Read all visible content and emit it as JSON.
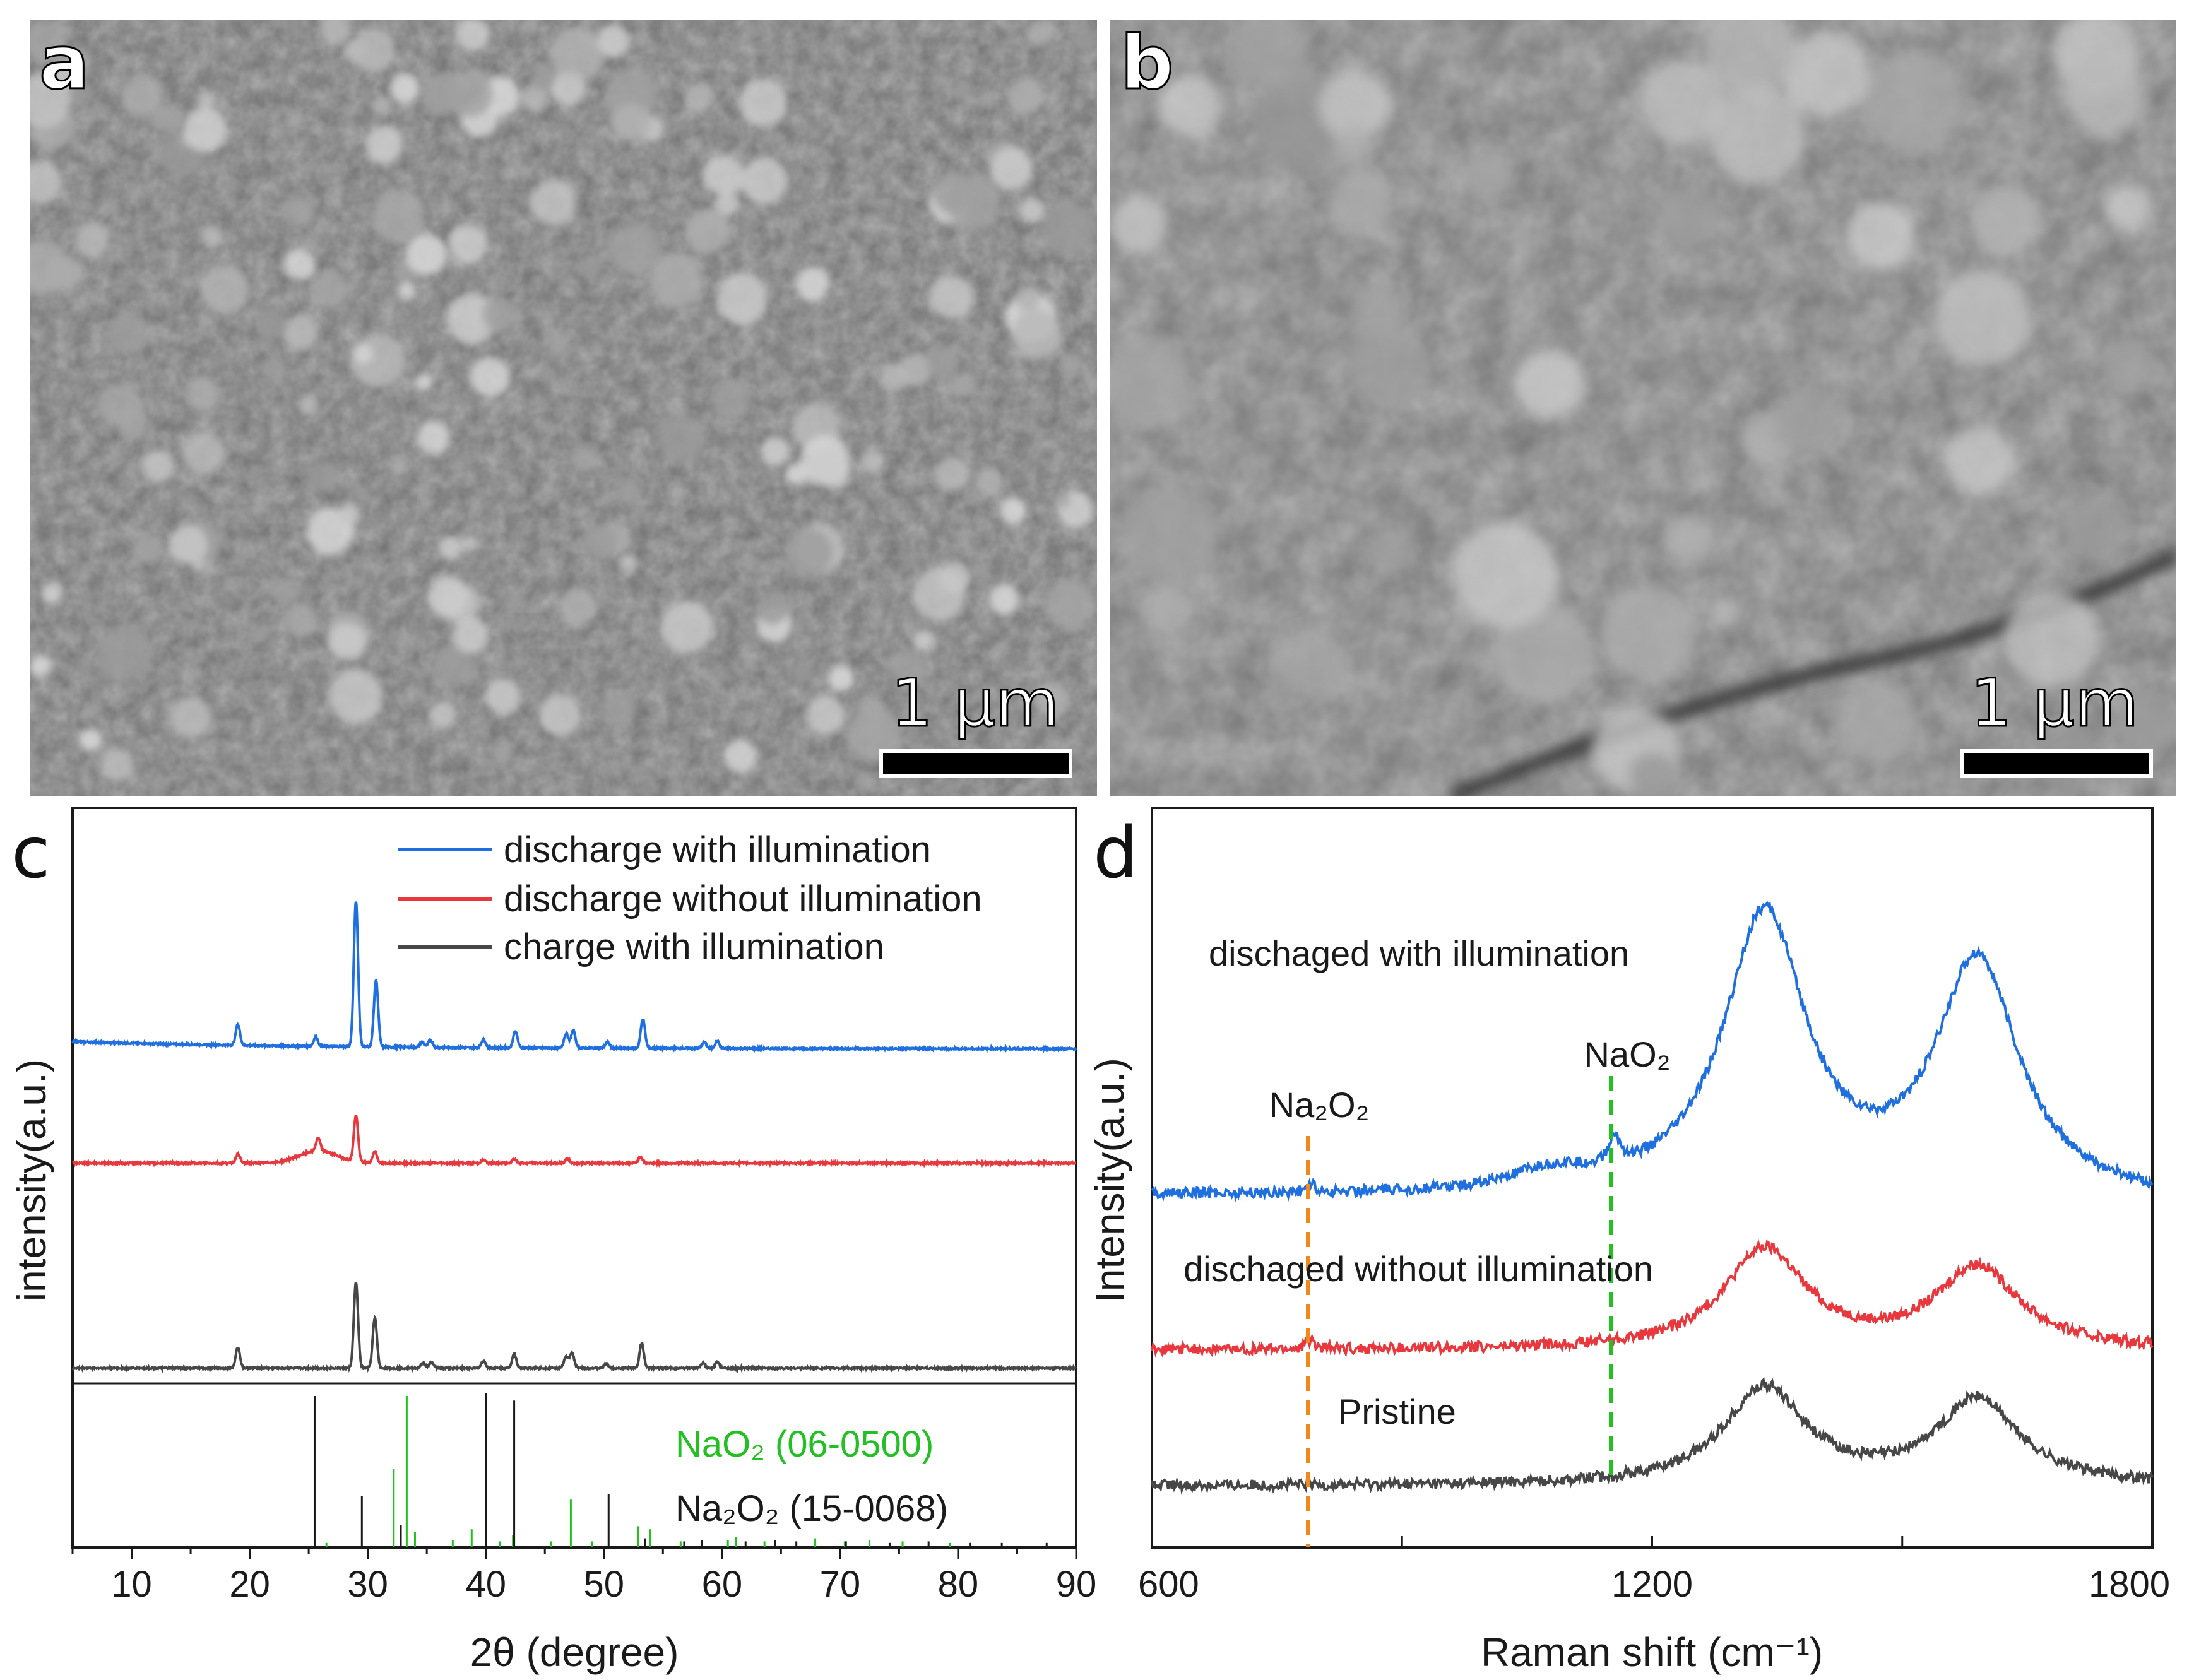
{
  "panels": {
    "a": {
      "letter": "a",
      "scalebar": "1 µm"
    },
    "b": {
      "letter": "b",
      "scalebar": "1 µm"
    },
    "c": {
      "letter": "c"
    },
    "d": {
      "letter": "d"
    }
  },
  "colors": {
    "blue": "#1f6fe0",
    "red": "#e8383d",
    "dark": "#474747",
    "green": "#22c022",
    "orange": "#f0891a"
  },
  "chart_data": [
    {
      "type": "line",
      "panel": "c",
      "xlabel": "2θ (degree)",
      "ylabel": "intensity(a.u.)",
      "xlim": [
        5,
        90
      ],
      "xticks": [
        10,
        20,
        30,
        40,
        50,
        60,
        70,
        80,
        90
      ],
      "series": [
        {
          "name": "discharge with illumination",
          "color": "#1f6fe0",
          "baseline": 0.0,
          "peaks": [
            [
              19.0,
              1.0
            ],
            [
              25.6,
              0.45
            ],
            [
              29.0,
              7.0
            ],
            [
              30.7,
              3.2
            ],
            [
              34.6,
              0.25
            ],
            [
              35.3,
              0.35
            ],
            [
              39.8,
              0.4
            ],
            [
              42.5,
              0.8
            ],
            [
              46.8,
              0.7
            ],
            [
              47.4,
              0.85
            ],
            [
              50.3,
              0.3
            ],
            [
              53.3,
              1.4
            ],
            [
              58.5,
              0.3
            ],
            [
              59.6,
              0.35
            ]
          ]
        },
        {
          "name": "discharge without illumination",
          "color": "#e8383d",
          "baseline": 0.0,
          "peaks": [
            [
              19.0,
              0.45
            ],
            [
              25.8,
              0.6
            ],
            [
              29.0,
              2.2
            ],
            [
              30.6,
              0.55
            ],
            [
              39.8,
              0.15
            ],
            [
              42.4,
              0.2
            ],
            [
              46.9,
              0.2
            ],
            [
              53.1,
              0.3
            ]
          ]
        },
        {
          "name": "charge with illumination",
          "color": "#474747",
          "baseline": 0.0,
          "peaks": [
            [
              19.0,
              1.0
            ],
            [
              29.0,
              4.1
            ],
            [
              30.6,
              2.4
            ],
            [
              34.7,
              0.25
            ],
            [
              35.4,
              0.3
            ],
            [
              39.8,
              0.35
            ],
            [
              42.4,
              0.7
            ],
            [
              46.8,
              0.55
            ],
            [
              47.3,
              0.75
            ],
            [
              50.2,
              0.2
            ],
            [
              53.2,
              1.2
            ],
            [
              58.4,
              0.25
            ],
            [
              59.6,
              0.3
            ]
          ]
        }
      ],
      "references": [
        {
          "name": "NaO2 (06-0500)",
          "color": "#22c022",
          "lines": [
            [
              26.5,
              0.03
            ],
            [
              32.2,
              0.52
            ],
            [
              33.3,
              1.0
            ],
            [
              34.0,
              0.1
            ],
            [
              37.2,
              0.05
            ],
            [
              38.8,
              0.12
            ],
            [
              41.2,
              0.04
            ],
            [
              42.3,
              0.08
            ],
            [
              45.5,
              0.04
            ],
            [
              47.2,
              0.32
            ],
            [
              49.0,
              0.04
            ],
            [
              52.9,
              0.14
            ],
            [
              53.9,
              0.12
            ],
            [
              56.5,
              0.04
            ],
            [
              60.5,
              0.05
            ],
            [
              61.2,
              0.07
            ],
            [
              63.6,
              0.04
            ],
            [
              67.9,
              0.06
            ],
            [
              70.4,
              0.04
            ],
            [
              72.5,
              0.05
            ],
            [
              75.3,
              0.04
            ],
            [
              79.3,
              0.03
            ]
          ]
        },
        {
          "name": "Na2O2 (15-0068)",
          "color": "#1a1a1a",
          "lines": [
            [
              25.5,
              1.0
            ],
            [
              29.5,
              0.34
            ],
            [
              32.8,
              0.15
            ],
            [
              40.0,
              1.02
            ],
            [
              42.4,
              0.97
            ],
            [
              50.4,
              0.35
            ],
            [
              53.5,
              0.06
            ],
            [
              56.8,
              0.04
            ],
            [
              58.3,
              0.05
            ],
            [
              62.0,
              0.04
            ],
            [
              64.5,
              0.05
            ],
            [
              66.3,
              0.04
            ],
            [
              70.5,
              0.04
            ],
            [
              74.2,
              0.03
            ],
            [
              77.5,
              0.04
            ],
            [
              81.0,
              0.03
            ],
            [
              83.7,
              0.03
            ],
            [
              87.5,
              0.03
            ]
          ]
        }
      ],
      "legend": [
        "discharge with illumination",
        "discharge without illumination",
        "charge with illumination"
      ],
      "legend_position": "top-right"
    },
    {
      "type": "line",
      "panel": "d",
      "xlabel": "Raman shift (cm⁻¹)",
      "ylabel": "Intensity(a.u.)",
      "xlim": [
        600,
        1800
      ],
      "xticks": [
        600,
        1200,
        1800
      ],
      "series": [
        {
          "name": "dischaged with illumination",
          "color": "#1f6fe0",
          "bands": [
            [
              1335,
              9.3,
              60
            ],
            [
              1590,
              7.8,
              60
            ],
            [
              1155,
              0.9,
              8
            ],
            [
              790,
              0.3,
              6
            ],
            [
              1080,
              0.6,
              60
            ]
          ]
        },
        {
          "name": "dischaged without illumination",
          "color": "#e8383d",
          "bands": [
            [
              1335,
              3.3,
              60
            ],
            [
              1590,
              2.7,
              60
            ],
            [
              790,
              0.3,
              6
            ]
          ]
        },
        {
          "name": "Pristine",
          "color": "#474747",
          "bands": [
            [
              1335,
              3.2,
              60
            ],
            [
              1590,
              2.8,
              60
            ]
          ]
        }
      ],
      "annotations": {
        "na2o2_label": "Na₂O₂",
        "na2o2_shift": 790,
        "nao2_label": "NaO₂",
        "nao2_shift": 1150
      }
    }
  ],
  "labels": {
    "legend": [
      "discharge with illumination",
      "discharge without illumination",
      "charge with illumination"
    ],
    "ref_nao2": "NaO₂ (06-0500)",
    "ref_na2o2": "Na₂O₂ (15-0068)",
    "c_xlabel": "2θ (degree)",
    "c_ylabel": "intensity(a.u.)",
    "d_xlabel": "Raman shift (cm⁻¹)",
    "d_ylabel": "Intensity(a.u.)",
    "d_series1": "dischaged with illumination",
    "d_series2": "dischaged without illumination",
    "d_series3": "Pristine",
    "d_na2o2": "Na₂O₂",
    "d_nao2": "NaO₂"
  }
}
